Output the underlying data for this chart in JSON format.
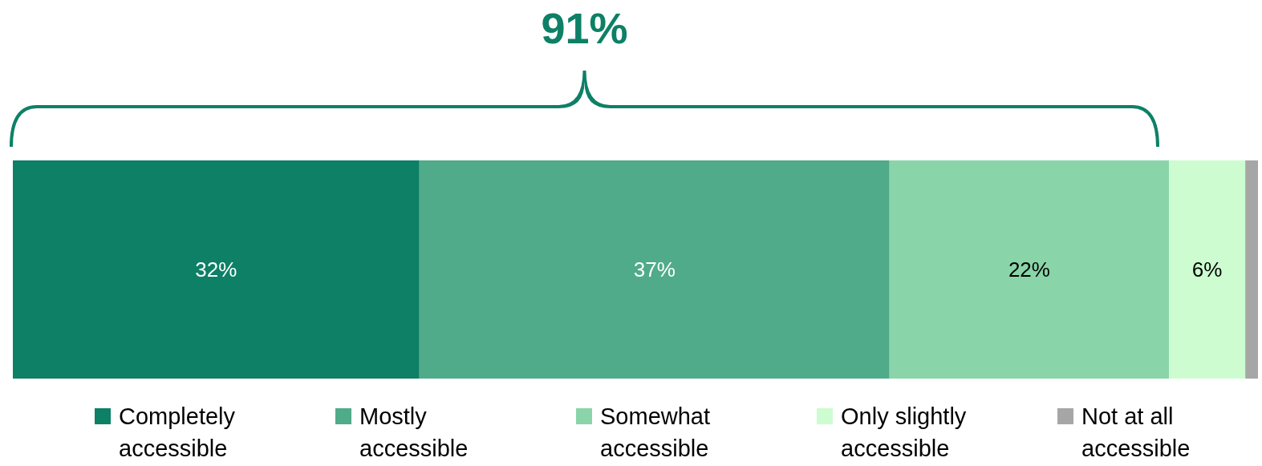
{
  "chart_data": {
    "type": "bar",
    "orientation": "horizontal",
    "stacked": true,
    "categories": [
      null
    ],
    "series": [
      {
        "name": "Completely accessible",
        "color": "#0d8066",
        "values": [
          32
        ],
        "value_labels": [
          "32%"
        ]
      },
      {
        "name": "Mostly accessible",
        "color": "#4fab8a",
        "values": [
          37
        ],
        "value_labels": [
          "37%"
        ]
      },
      {
        "name": "Somewhat accessible",
        "color": "#8ad4a9",
        "values": [
          22
        ],
        "value_labels": [
          "22%"
        ]
      },
      {
        "name": "Only slightly accessible",
        "color": "#ccfcd0",
        "values": [
          6
        ],
        "value_labels": [
          "6%"
        ]
      },
      {
        "name": "Not at all accessible",
        "color": "#a6a6a6",
        "values": [
          1
        ],
        "value_labels": [
          null
        ]
      }
    ],
    "legend": "bottom",
    "annotations": [
      "91%"
    ]
  }
}
